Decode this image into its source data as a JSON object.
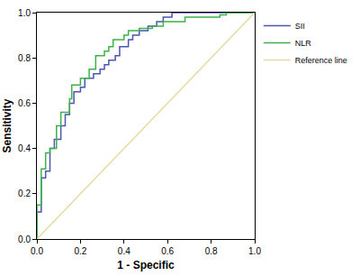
{
  "chart_data": {
    "type": "line",
    "x_label": "1 - Specific",
    "y_label": "Sensitivity",
    "xlim": [
      0,
      1
    ],
    "ylim": [
      0,
      1
    ],
    "xticks": [
      {
        "value": 0,
        "label": "0.0"
      },
      {
        "value": 0.2,
        "label": "0.2"
      },
      {
        "value": 0.4,
        "label": "0.4"
      },
      {
        "value": 0.6,
        "label": "0.6"
      },
      {
        "value": 0.8,
        "label": "0.8"
      },
      {
        "value": 1,
        "label": "1.0"
      }
    ],
    "yticks": [
      {
        "value": 0,
        "label": "0.0"
      },
      {
        "value": 0.2,
        "label": "0.2"
      },
      {
        "value": 0.4,
        "label": "0.4"
      },
      {
        "value": 0.6,
        "label": "0.6"
      },
      {
        "value": 0.8,
        "label": "0.8"
      },
      {
        "value": 1,
        "label": "1.0"
      }
    ],
    "grid": false,
    "legend": "top right",
    "series": [
      {
        "name": "SII",
        "color": "#4a56b0",
        "x": [
          0,
          0,
          0.02,
          0.02,
          0.04,
          0.04,
          0.06,
          0.06,
          0.08,
          0.08,
          0.11,
          0.11,
          0.13,
          0.13,
          0.15,
          0.15,
          0.17,
          0.17,
          0.2,
          0.2,
          0.22,
          0.22,
          0.26,
          0.26,
          0.29,
          0.29,
          0.31,
          0.31,
          0.33,
          0.33,
          0.36,
          0.36,
          0.38,
          0.38,
          0.42,
          0.42,
          0.44,
          0.44,
          0.47,
          0.47,
          0.51,
          0.51,
          0.55,
          0.55,
          0.58,
          0.58,
          0.62,
          0.62,
          1
        ],
        "values": [
          0,
          0.12,
          0.12,
          0.27,
          0.27,
          0.3,
          0.3,
          0.4,
          0.4,
          0.44,
          0.44,
          0.5,
          0.5,
          0.55,
          0.55,
          0.6,
          0.6,
          0.65,
          0.65,
          0.67,
          0.67,
          0.71,
          0.71,
          0.73,
          0.73,
          0.75,
          0.75,
          0.77,
          0.77,
          0.79,
          0.79,
          0.81,
          0.81,
          0.85,
          0.85,
          0.88,
          0.88,
          0.9,
          0.9,
          0.92,
          0.92,
          0.94,
          0.94,
          0.96,
          0.96,
          0.98,
          0.98,
          1,
          1
        ]
      },
      {
        "name": "NLR",
        "color": "#3cb34a",
        "x": [
          0,
          0,
          0.02,
          0.02,
          0.04,
          0.04,
          0.06,
          0.06,
          0.09,
          0.09,
          0.11,
          0.11,
          0.15,
          0.15,
          0.16,
          0.16,
          0.2,
          0.2,
          0.24,
          0.24,
          0.27,
          0.27,
          0.31,
          0.31,
          0.33,
          0.33,
          0.35,
          0.35,
          0.4,
          0.4,
          0.42,
          0.42,
          0.47,
          0.47,
          0.53,
          0.53,
          0.58,
          0.58,
          0.68,
          0.68,
          0.84,
          0.84,
          0.87,
          0.87,
          1
        ],
        "values": [
          0,
          0.15,
          0.15,
          0.31,
          0.31,
          0.38,
          0.38,
          0.4,
          0.4,
          0.5,
          0.5,
          0.56,
          0.56,
          0.62,
          0.62,
          0.68,
          0.68,
          0.71,
          0.71,
          0.75,
          0.75,
          0.81,
          0.81,
          0.83,
          0.83,
          0.85,
          0.85,
          0.88,
          0.88,
          0.9,
          0.9,
          0.92,
          0.92,
          0.93,
          0.93,
          0.94,
          0.94,
          0.96,
          0.96,
          0.98,
          0.98,
          0.99,
          0.99,
          1,
          1
        ]
      },
      {
        "name": "Reference line",
        "color": "#e6d9a0",
        "x": [
          0,
          1
        ],
        "values": [
          0,
          1
        ]
      }
    ]
  }
}
